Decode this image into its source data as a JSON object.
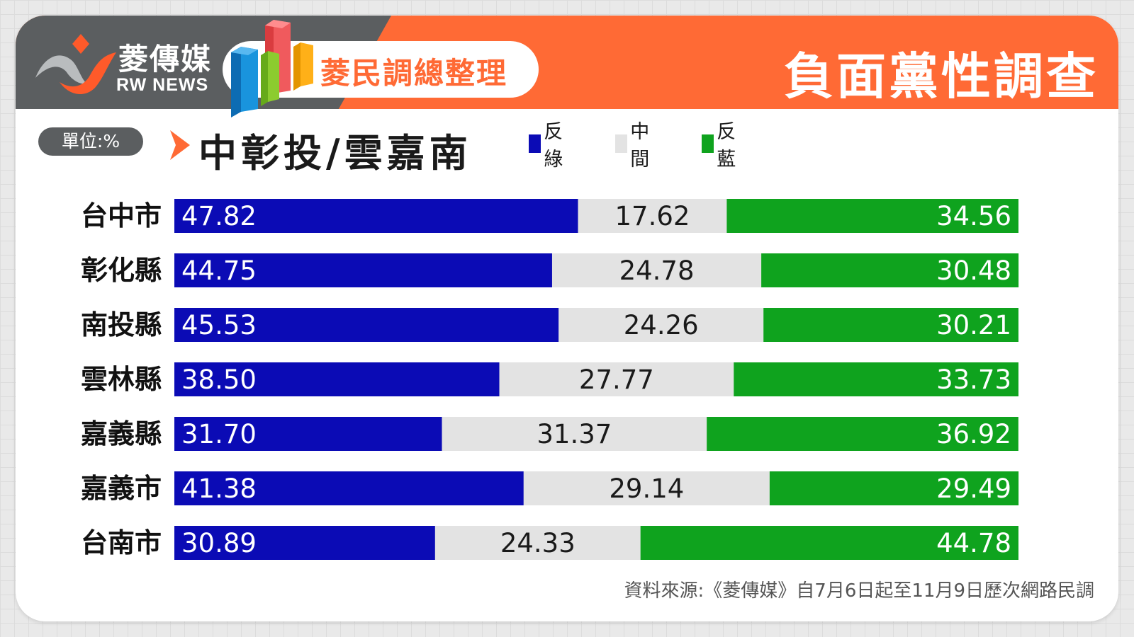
{
  "brand": {
    "name": "菱傳媒",
    "sub": "RW NEWS",
    "series_title": "菱民調總整理"
  },
  "header": {
    "title": "負面黨性調查"
  },
  "unit_label": "單位:%",
  "subtitle": "中彰投/雲嘉南",
  "source": "資料來源:《菱傳媒》自7月6日起至11月9日歷次網路民調",
  "colors": {
    "orange": "#ff6a35",
    "dark_gray": "#5b5e60",
    "anti_green": "#0b0bb5",
    "middle": "#e3e3e3",
    "anti_blue": "#0fa31e"
  },
  "chart_data": {
    "type": "bar",
    "stacked": true,
    "orientation": "horizontal",
    "categories": [
      "台中市",
      "彰化縣",
      "南投縣",
      "雲林縣",
      "嘉義縣",
      "嘉義市",
      "台南市"
    ],
    "series": [
      {
        "name": "反綠",
        "color": "#0b0bb5",
        "values": [
          47.82,
          44.75,
          45.53,
          38.5,
          31.7,
          41.38,
          30.89
        ],
        "labels": [
          "47.82",
          "44.75",
          "45.53",
          "38.50",
          "31.70",
          "41.38",
          "30.89"
        ]
      },
      {
        "name": "中間",
        "color": "#e3e3e3",
        "values": [
          17.62,
          24.78,
          24.26,
          27.77,
          31.37,
          29.14,
          24.33
        ],
        "labels": [
          "17.62",
          "24.78",
          "24.26",
          "27.77",
          "31.37",
          "29.14",
          "24.33"
        ]
      },
      {
        "name": "反藍",
        "color": "#0fa31e",
        "values": [
          34.56,
          30.48,
          30.21,
          33.73,
          36.92,
          29.49,
          44.78
        ],
        "labels": [
          "34.56",
          "30.48",
          "30.21",
          "33.73",
          "36.92",
          "29.49",
          "44.78"
        ]
      }
    ],
    "xlim": [
      0,
      100
    ],
    "legend_position": "top"
  }
}
